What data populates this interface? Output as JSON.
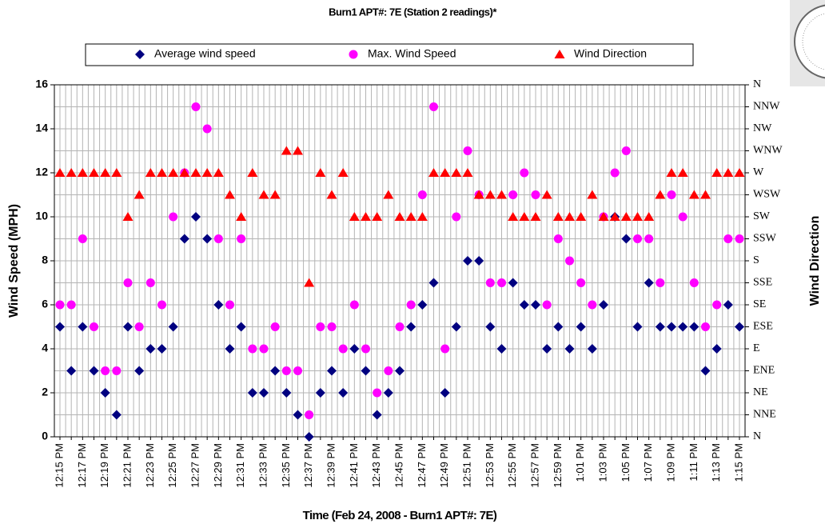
{
  "chart_data": {
    "type": "scatter",
    "title": "Burn1 APT#: 7E (Station 2 readings)*",
    "xlabel": "Time (Feb 24, 2008 - Burn1 APT#: 7E)",
    "ylabel": "Wind Speed (MPH)",
    "y2label": "Wind Direction",
    "categories": [
      "12:15 PM",
      null,
      "12:17 PM",
      null,
      "12:19 PM",
      null,
      "12:21 PM",
      null,
      "12:23 PM",
      null,
      "12:25 PM",
      null,
      "12:27 PM",
      null,
      "12:29 PM",
      null,
      "12:31 PM",
      null,
      "12:33 PM",
      null,
      "12:35 PM",
      null,
      "12:37 PM",
      null,
      "12:39 PM",
      null,
      "12:41 PM",
      null,
      "12:43 PM",
      null,
      "12:45 PM",
      null,
      "12:47 PM",
      null,
      "12:49 PM",
      null,
      "12:51 PM",
      null,
      "12:53 PM",
      null,
      "12:55 PM",
      null,
      "12:57 PM",
      null,
      "12:59 PM",
      null,
      "1:01 PM",
      null,
      "1:03 PM",
      null,
      "1:05 PM",
      null,
      "1:07 PM",
      null,
      "1:09 PM",
      null,
      "1:11 PM",
      null,
      "1:13 PM",
      null,
      "1:15 PM"
    ],
    "series": [
      {
        "name": "Average wind speed",
        "color": "#000080",
        "marker": "diamond",
        "values": [
          5,
          3,
          5,
          3,
          2,
          1,
          5,
          3,
          4,
          4,
          5,
          9,
          10,
          9,
          6,
          4,
          5,
          2,
          2,
          3,
          2,
          1,
          0,
          2,
          3,
          2,
          4,
          3,
          1,
          2,
          3,
          5,
          6,
          7,
          2,
          5,
          8,
          8,
          5,
          4,
          7,
          6,
          6,
          4,
          5,
          4,
          5,
          4,
          6,
          10,
          9,
          5,
          7,
          5,
          5,
          5,
          5,
          3,
          4,
          6,
          5
        ]
      },
      {
        "name": "Max. Wind Speed",
        "color": "#ff00ff",
        "marker": "circle",
        "values": [
          6,
          6,
          9,
          5,
          3,
          3,
          7,
          5,
          7,
          6,
          10,
          12,
          15,
          14,
          9,
          6,
          9,
          4,
          4,
          5,
          3,
          3,
          1,
          5,
          5,
          4,
          6,
          4,
          2,
          3,
          5,
          6,
          11,
          15,
          4,
          10,
          13,
          11,
          7,
          7,
          11,
          12,
          11,
          6,
          9,
          8,
          7,
          6,
          10,
          12,
          13,
          9,
          9,
          7,
          11,
          10,
          7,
          5,
          6,
          9,
          9
        ]
      },
      {
        "name": "Wind Direction",
        "color": "#ff0000",
        "marker": "triangle",
        "axis": "y2",
        "values": [
          12,
          12,
          12,
          12,
          12,
          12,
          10,
          11,
          12,
          12,
          12,
          12,
          12,
          12,
          12,
          11,
          10,
          12,
          11,
          11,
          13,
          13,
          7,
          12,
          11,
          12,
          10,
          10,
          10,
          11,
          10,
          10,
          10,
          12,
          12,
          12,
          12,
          11,
          11,
          11,
          10,
          10,
          10,
          11,
          10,
          10,
          10,
          11,
          10,
          10,
          10,
          10,
          10,
          11,
          12,
          12,
          11,
          11,
          12,
          12,
          12
        ]
      }
    ],
    "ylim": [
      0,
      16
    ],
    "yticks": [
      0,
      2,
      4,
      6,
      8,
      10,
      12,
      14,
      16
    ],
    "y2lim": [
      0,
      16
    ],
    "y2ticks": [
      {
        "value": 0,
        "label": "N"
      },
      {
        "value": 1,
        "label": "NNE"
      },
      {
        "value": 2,
        "label": "NE"
      },
      {
        "value": 3,
        "label": "ENE"
      },
      {
        "value": 4,
        "label": "E"
      },
      {
        "value": 5,
        "label": "ESE"
      },
      {
        "value": 6,
        "label": "SE"
      },
      {
        "value": 7,
        "label": "SSE"
      },
      {
        "value": 8,
        "label": "S"
      },
      {
        "value": 9,
        "label": "SSW"
      },
      {
        "value": 10,
        "label": "SW"
      },
      {
        "value": 11,
        "label": "WSW"
      },
      {
        "value": 12,
        "label": "W"
      },
      {
        "value": 13,
        "label": "WNW"
      },
      {
        "value": 14,
        "label": "NW"
      },
      {
        "value": 15,
        "label": "NNW"
      },
      {
        "value": 16,
        "label": "N"
      }
    ],
    "grid": true
  }
}
